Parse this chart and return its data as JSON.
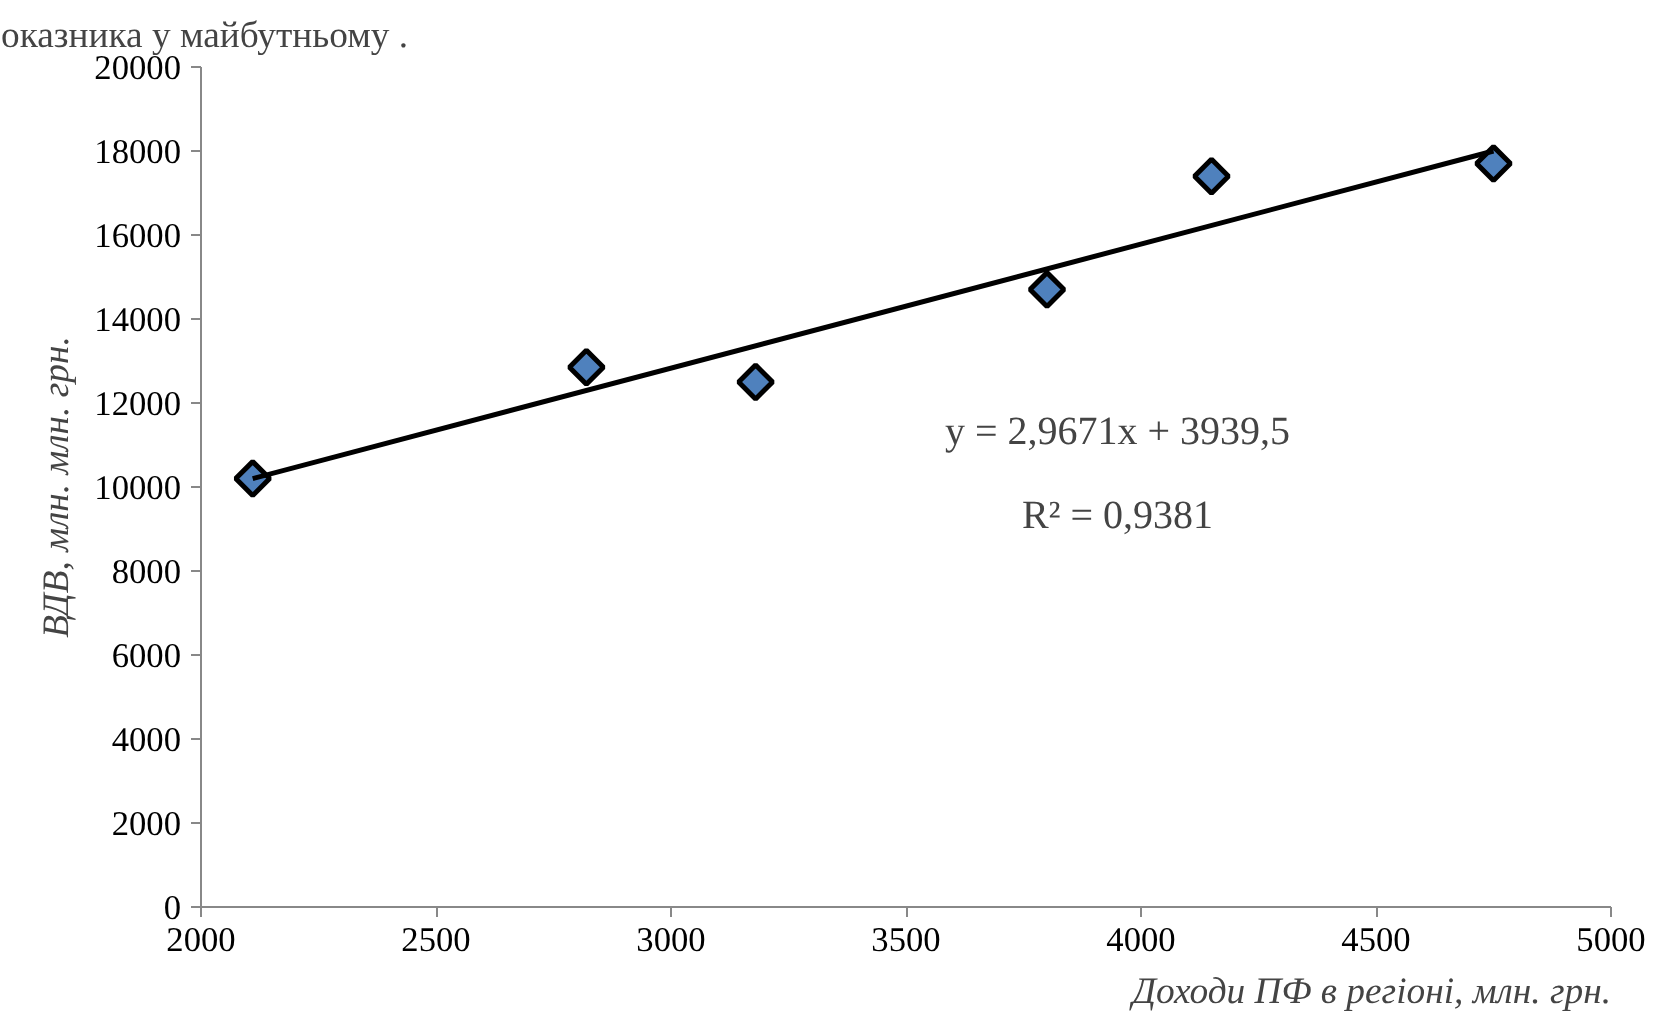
{
  "chart_data": {
    "type": "scatter",
    "title": "оказника у майбутньому .",
    "xlabel": "Доходи ПФ в регіоні, млн. грн.",
    "ylabel": "ВДВ, млн. млн. грн.",
    "annotations": [
      "y = 2,9671x + 3939,5",
      "R² = 0,9381"
    ],
    "series": [
      {
        "color": "#4f81bd",
        "x": [
          2110,
          2820,
          3180,
          3800,
          4150,
          4750
        ],
        "values": [
          10200,
          12850,
          12500,
          14700,
          17400,
          17700
        ],
        "marker": "diamond"
      },
      {
        "type": "line",
        "color": "#000000",
        "x": [
          2110,
          4750
        ],
        "values": [
          10200,
          18000
        ],
        "marker": "none"
      }
    ],
    "xlim": [
      2000,
      5000
    ],
    "ylim": [
      0,
      20000
    ],
    "xticks": [
      2000,
      2500,
      3000,
      3500,
      4000,
      4500,
      5000
    ],
    "yticks": [
      0,
      2000,
      4000,
      6000,
      8000,
      10000,
      12000,
      14000,
      16000,
      18000,
      20000
    ],
    "grid": false,
    "line_style": "solid"
  }
}
